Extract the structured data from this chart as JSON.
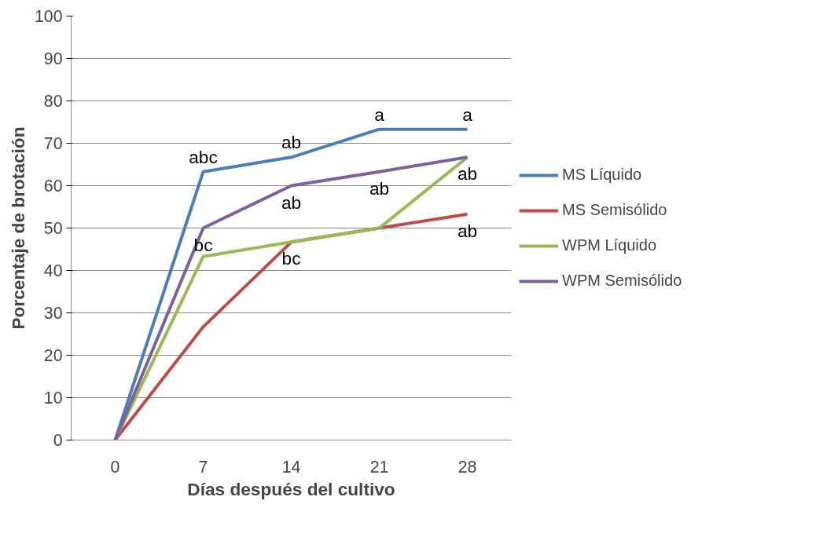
{
  "chart_data": {
    "type": "line",
    "xlabel": "Días después del cultivo",
    "ylabel": "Porcentaje de brotación",
    "categories": [
      "0",
      "7",
      "14",
      "21",
      "28"
    ],
    "series": [
      {
        "name": "MS Líquido",
        "color": "#4a7ebb",
        "values": [
          0,
          63.3,
          66.7,
          73.3,
          73.3
        ]
      },
      {
        "name": "MS Semisólido",
        "color": "#be4b48",
        "values": [
          0,
          26.7,
          46.7,
          50,
          53.3
        ]
      },
      {
        "name": "WPM Líquido",
        "color": "#98b954",
        "values": [
          0,
          43.3,
          46.7,
          50,
          66.7
        ]
      },
      {
        "name": "WPM Semisólido",
        "color": "#7d60a0",
        "values": [
          0,
          50,
          60,
          63.3,
          66.7
        ]
      }
    ],
    "ylim": [
      0,
      100
    ],
    "yticks": [
      0,
      10,
      20,
      30,
      40,
      50,
      60,
      70,
      80,
      90,
      100
    ],
    "grid": "y",
    "legend": "right",
    "marker": "none",
    "line_style": "solid",
    "annotations": [
      {
        "text": "abc",
        "x": "7",
        "y": 63.3
      },
      {
        "text": "ab",
        "x": "14",
        "y": 66.7
      },
      {
        "text": "a",
        "x": "21",
        "y": 73.3
      },
      {
        "text": "a",
        "x": "28",
        "y": 73.3
      },
      {
        "text": "ab",
        "x": "14",
        "y": 60
      },
      {
        "text": "ab",
        "x": "21",
        "y": 63.3
      },
      {
        "text": "ab",
        "x": "28",
        "y": 66.7
      },
      {
        "text": "bc",
        "x": "7",
        "y": 50
      },
      {
        "text": "bc",
        "x": "14",
        "y": 46.7
      },
      {
        "text": "ab",
        "x": "28",
        "y": 53.3
      }
    ]
  }
}
